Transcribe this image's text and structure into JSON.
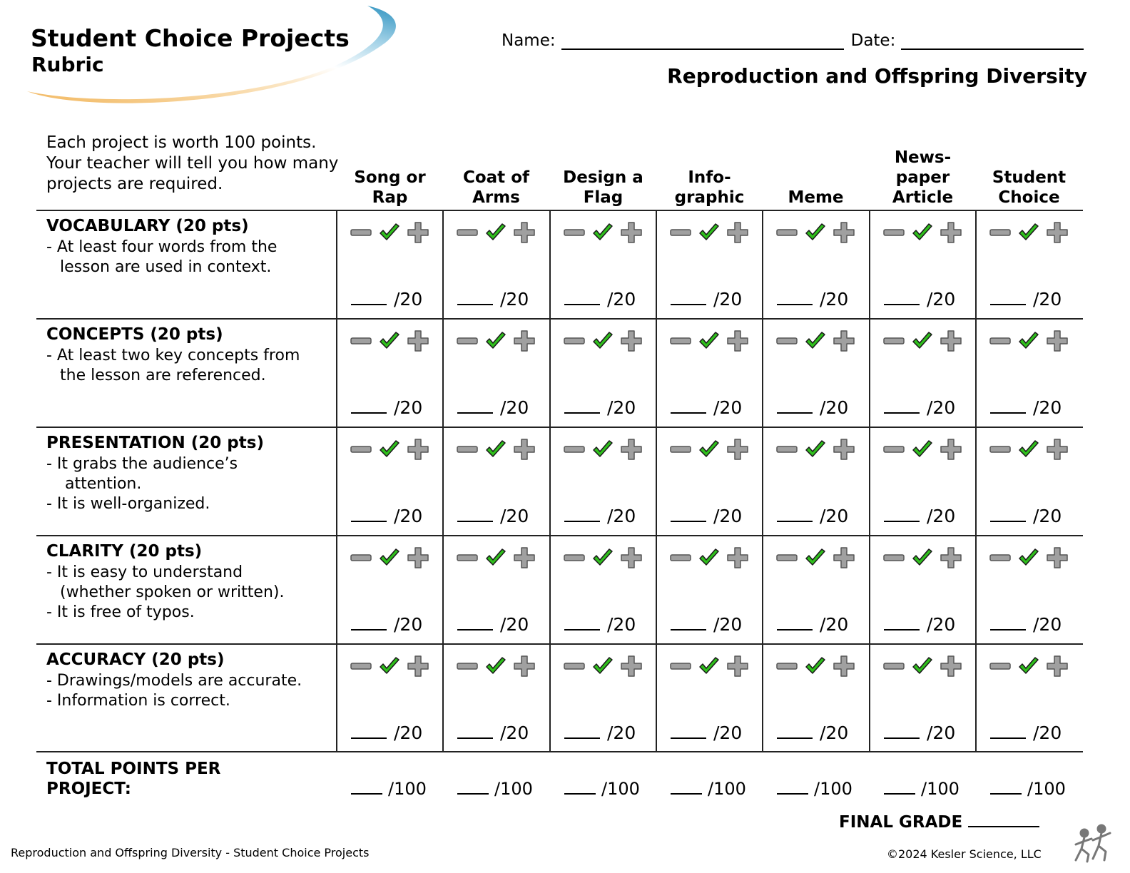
{
  "header": {
    "title": "Student Choice Projects",
    "subtitle": "Rubric",
    "name_label": "Name:",
    "date_label": "Date:",
    "topic": "Reproduction and Offspring Diversity"
  },
  "intro": "Each project is worth 100 points. Your teacher will tell you how many projects are required.",
  "columns": [
    {
      "label": "Song or\nRap"
    },
    {
      "label": "Coat of\nArms"
    },
    {
      "label": "Design a\nFlag"
    },
    {
      "label": "Info-\ngraphic"
    },
    {
      "label": "Meme"
    },
    {
      "label": "News-\npaper\nArticle"
    },
    {
      "label": "Student\nChoice"
    }
  ],
  "criteria": [
    {
      "title": "VOCABULARY (20 pts)",
      "lines": [
        "- At least four words from the",
        "lesson are used in context."
      ]
    },
    {
      "title": "CONCEPTS (20 pts)",
      "lines": [
        "- At least two key concepts from",
        "the lesson are referenced."
      ]
    },
    {
      "title": "PRESENTATION (20 pts)",
      "lines": [
        "-  It grabs the audience’s",
        "attention.",
        "-  It is well-organized."
      ]
    },
    {
      "title": "CLARITY (20 pts)",
      "lines": [
        "- It is easy to understand",
        "(whether spoken or written).",
        "- It is free of typos."
      ]
    },
    {
      "title": "ACCURACY (20 pts)",
      "lines": [
        "- Drawings/models are accurate.",
        "- Information is correct."
      ]
    }
  ],
  "score_text": "/20",
  "total_label": "TOTAL POINTS PER PROJECT:",
  "total_text": "/100",
  "final_grade_label": "FINAL GRADE",
  "footer_left": "Reproduction and Offspring Diversity - Student Choice Projects",
  "footer_right": "©2024  Kesler Science, LLC",
  "icons": [
    "minus-icon",
    "check-icon",
    "plus-icon",
    "kesler-logo-icon"
  ],
  "colors": {
    "check": "#2fbf1c",
    "icon_gray": "#a0a0a0",
    "swoosh_blue": "#2f93c0",
    "swoosh_orange": "#f2b860"
  }
}
